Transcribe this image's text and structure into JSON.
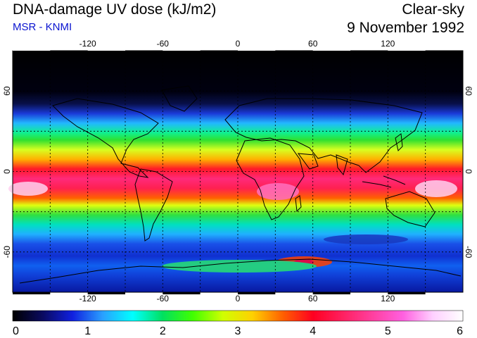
{
  "header": {
    "title": "DNA-damage UV dose (kJ/m2)",
    "source": "MSR - KNMI",
    "condition": "Clear-sky",
    "date": "9 November 1992"
  },
  "map": {
    "lon_ticks": [
      "-120",
      "-60",
      "0",
      "60",
      "120"
    ],
    "lat_ticks_left": [
      "60",
      "0",
      "-60"
    ],
    "lat_ticks_right": [
      "60",
      "0",
      "-60"
    ],
    "gridlines": true
  },
  "colorbar": {
    "labels": [
      "0",
      "1",
      "2",
      "3",
      "4",
      "5",
      "6"
    ],
    "min": 0,
    "max": 6,
    "colors": [
      "#000000",
      "#0a0a60",
      "#1020e0",
      "#2aa0ff",
      "#00ffff",
      "#00e060",
      "#40ff00",
      "#d0ff00",
      "#ffd000",
      "#ff6000",
      "#ff0020",
      "#ff2060",
      "#ff40a0",
      "#ff60e0",
      "#ffd0ff",
      "#ffffff"
    ]
  }
}
